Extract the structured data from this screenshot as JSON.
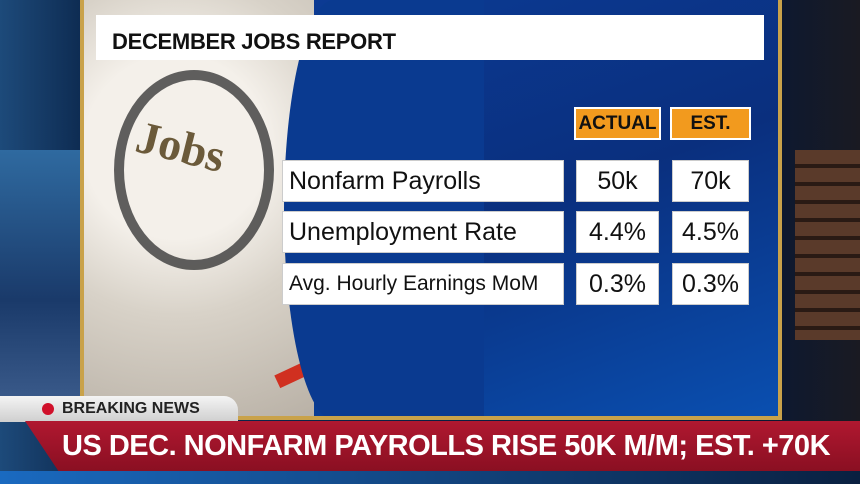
{
  "report": {
    "title": "DECEMBER JOBS REPORT",
    "photo_text": "Jobs",
    "columns": [
      "ACTUAL",
      "EST."
    ],
    "rows": [
      {
        "label": "Nonfarm Payrolls",
        "actual": "50k",
        "estimate": "70k"
      },
      {
        "label": "Unemployment Rate",
        "actual": "4.4%",
        "estimate": "4.5%"
      },
      {
        "label": "Avg. Hourly Earnings MoM",
        "actual": "0.3%",
        "estimate": "0.3%"
      }
    ]
  },
  "banner": {
    "tag": "BREAKING NEWS",
    "headline": "US DEC. NONFARM PAYROLLS RISE 50K M/M; EST. +70K"
  },
  "colors": {
    "accent": "#f29a1e",
    "ticker": "#a0142a",
    "panel": "#0a3a90"
  }
}
